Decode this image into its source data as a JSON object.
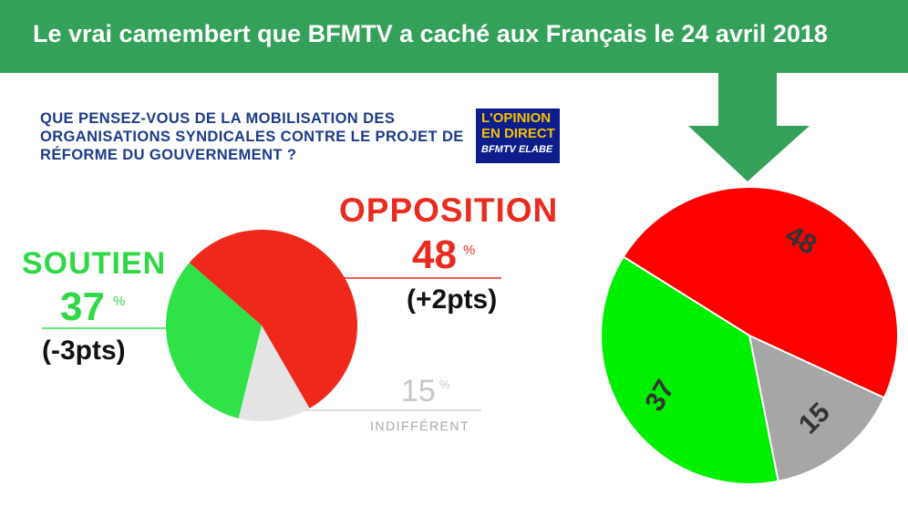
{
  "banner": {
    "title": "Le vrai camembert que BFMTV a caché aux Français le 24 avril 2018",
    "color": "#34a15b"
  },
  "question": {
    "text": "QUE PENSEZ-VOUS DE LA MOBILISATION DES ORGANISATIONS SYNDICALES CONTRE LE PROJET DE RÉFORME DU GOUVERNEMENT ?"
  },
  "logo": {
    "line1": "L'OPINION",
    "line2": "EN DIRECT",
    "line3": "BFMTV ELABE"
  },
  "labels": {
    "soutien": {
      "title": "SOUTIEN",
      "value": "37",
      "pct": "%",
      "delta": "(-3pts)"
    },
    "opposition": {
      "title": "OPPOSITION",
      "value": "48",
      "pct": "%",
      "delta": "(+2pts)"
    },
    "indifferent": {
      "title": "INDIFFÉRENT",
      "value": "15",
      "pct": "%"
    }
  },
  "chart_data": [
    {
      "type": "pie",
      "categories": [
        "OPPOSITION",
        "INDIFFÉRENT",
        "SOUTIEN"
      ],
      "values": [
        48,
        15,
        37
      ],
      "colors": [
        "#f0281c",
        "#e4e4e4",
        "#2fe248"
      ],
      "start_angle_deg": 311,
      "note": "pie as shown by BFMTV (slices drawn with unequal proportions)"
    },
    {
      "type": "pie",
      "categories": [
        "48",
        "15",
        "37"
      ],
      "values": [
        48,
        15,
        37
      ],
      "colors": [
        "#ff0000",
        "#a6a6a6",
        "#00ee00"
      ],
      "start_angle_deg": 302,
      "slice_labels": [
        "48",
        "15",
        "37"
      ]
    }
  ]
}
